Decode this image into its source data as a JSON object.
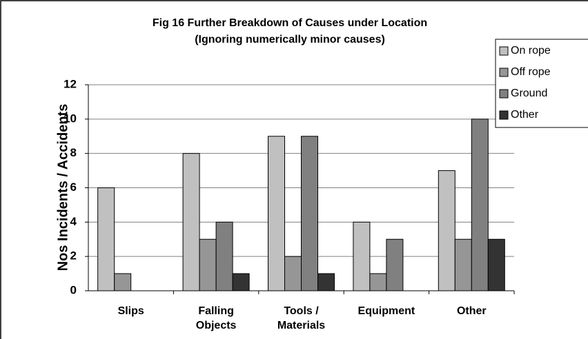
{
  "chart_data": {
    "type": "bar",
    "title": "Fig 16  Further Breakdown of Causes under Location",
    "subtitle": "(Ignoring numerically minor causes)",
    "y_label": "Nos Incidents / Accidents",
    "categories": [
      "Slips",
      "Falling Objects",
      "Tools / Materials",
      "Equipment",
      "Other"
    ],
    "series": [
      {
        "name": "On rope",
        "color": "#c0c0c0",
        "values": [
          6,
          8,
          9,
          4,
          7
        ]
      },
      {
        "name": "Off rope",
        "color": "#969696",
        "values": [
          1,
          3,
          2,
          1,
          3
        ]
      },
      {
        "name": "Ground",
        "color": "#808080",
        "values": [
          0,
          4,
          9,
          3,
          10
        ]
      },
      {
        "name": "Other",
        "color": "#333333",
        "values": [
          0,
          1,
          1,
          0,
          3
        ]
      }
    ],
    "ylim": [
      0,
      12
    ],
    "yticks": [
      0,
      2,
      4,
      6,
      8,
      10,
      12
    ],
    "grid": true,
    "legend": "top-right"
  }
}
